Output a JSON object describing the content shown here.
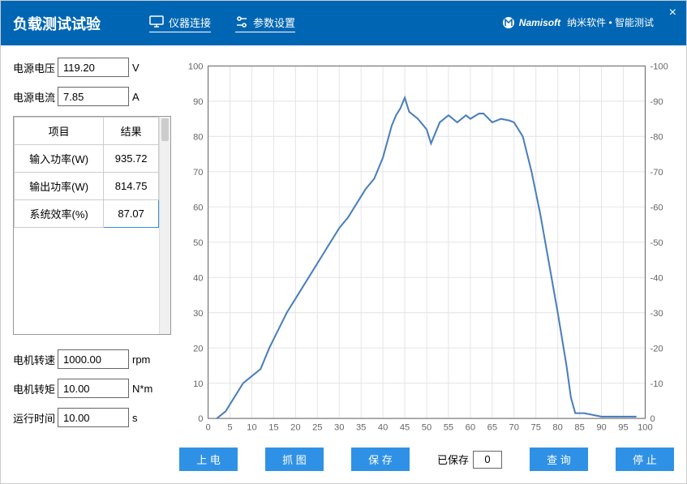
{
  "header": {
    "title": "负载测试试验",
    "connect": "仪器连接",
    "settings": "参数设置",
    "brand": "Namisoft",
    "brand_sub": "纳米软件 • 智能测试"
  },
  "fields": {
    "voltage_label": "电源电压",
    "voltage_val": "119.20",
    "voltage_unit": "V",
    "current_label": "电源电流",
    "current_val": "7.85",
    "current_unit": "A",
    "speed_label": "电机转速",
    "speed_val": "1000.00",
    "speed_unit": "rpm",
    "torque_label": "电机转矩",
    "torque_val": "10.00",
    "torque_unit": "N*m",
    "time_label": "运行时间",
    "time_val": "10.00",
    "time_unit": "s"
  },
  "table": {
    "col1": "项目",
    "col2": "结果",
    "r1_k": "输入功率(W)",
    "r1_v": "935.72",
    "r2_k": "输出功率(W)",
    "r2_v": "814.75",
    "r3_k": "系统效率(%)",
    "r3_v": "87.07"
  },
  "buttons": {
    "power": "上 电",
    "snap": "抓 图",
    "save": "保 存",
    "saved_label": "已保存",
    "saved_val": "0",
    "query": "查 询",
    "stop": "停 止"
  },
  "chart": {
    "type": "line",
    "xlim": [
      0,
      100
    ],
    "ylim": [
      0,
      100
    ],
    "y2lim": [
      -100,
      0
    ],
    "xtick_step": 5,
    "ytick_step": 10,
    "x_ticks": [
      0,
      5,
      10,
      15,
      20,
      25,
      30,
      35,
      40,
      45,
      50,
      55,
      60,
      65,
      70,
      75,
      80,
      85,
      90,
      95,
      100
    ],
    "y_ticks": [
      0,
      10,
      20,
      30,
      40,
      50,
      60,
      70,
      80,
      90,
      100
    ],
    "y2_ticks": [
      0,
      -10,
      -20,
      -30,
      -40,
      -50,
      -60,
      -70,
      -80,
      -90,
      -100
    ],
    "line_color": "#4a7ebb",
    "grid_color": "#e5e5e5",
    "axis_color": "#666666",
    "background_color": "#ffffff",
    "line_width": 2,
    "tick_fontsize": 11,
    "data": [
      [
        2,
        0
      ],
      [
        4,
        2
      ],
      [
        6,
        6
      ],
      [
        8,
        10
      ],
      [
        10,
        12
      ],
      [
        12,
        14
      ],
      [
        14,
        20
      ],
      [
        16,
        25
      ],
      [
        18,
        30
      ],
      [
        20,
        34
      ],
      [
        22,
        38
      ],
      [
        24,
        42
      ],
      [
        26,
        46
      ],
      [
        28,
        50
      ],
      [
        30,
        54
      ],
      [
        32,
        57
      ],
      [
        34,
        61
      ],
      [
        36,
        65
      ],
      [
        38,
        68
      ],
      [
        40,
        74
      ],
      [
        42,
        83
      ],
      [
        43,
        86
      ],
      [
        44,
        88
      ],
      [
        45,
        91
      ],
      [
        46,
        87
      ],
      [
        48,
        85
      ],
      [
        50,
        82
      ],
      [
        51,
        78
      ],
      [
        53,
        84
      ],
      [
        55,
        86
      ],
      [
        57,
        84
      ],
      [
        59,
        86
      ],
      [
        60,
        85
      ],
      [
        62,
        86.5
      ],
      [
        63,
        86.5
      ],
      [
        65,
        84
      ],
      [
        67,
        85
      ],
      [
        69,
        84.5
      ],
      [
        70,
        84
      ],
      [
        72,
        80
      ],
      [
        74,
        70
      ],
      [
        76,
        58
      ],
      [
        78,
        44
      ],
      [
        80,
        30
      ],
      [
        82,
        15
      ],
      [
        83,
        6
      ],
      [
        84,
        1.5
      ],
      [
        86,
        1.5
      ],
      [
        88,
        1
      ],
      [
        90,
        0.5
      ],
      [
        92,
        0.5
      ],
      [
        95,
        0.5
      ],
      [
        98,
        0.5
      ]
    ]
  }
}
